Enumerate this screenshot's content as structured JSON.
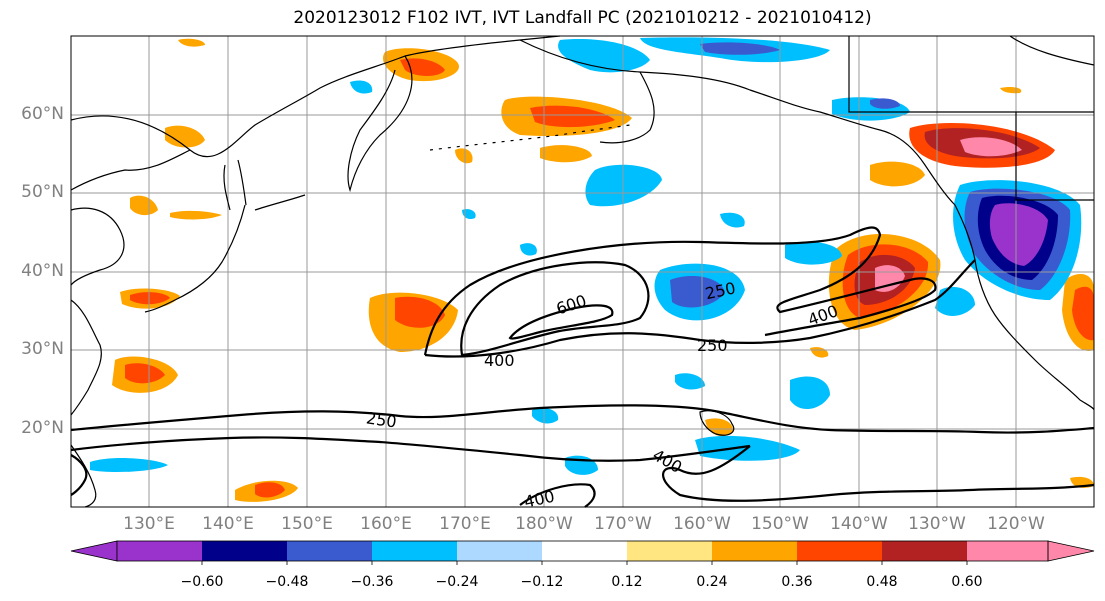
{
  "title": "2020123012 F102 IVT, IVT Landfall PC (2021010212 - 2021010412)",
  "lat_labels": [
    "60°N",
    "50°N",
    "40°N",
    "30°N",
    "20°N"
  ],
  "lon_labels": [
    "130°E",
    "140°E",
    "150°E",
    "160°E",
    "170°E",
    "180°W",
    "170°W",
    "160°W",
    "150°W",
    "140°W",
    "130°W",
    "120°W"
  ],
  "contour_labels": [
    "600",
    "400",
    "250",
    "250",
    "400",
    "250",
    "400",
    "400"
  ],
  "colorbar": {
    "ticks": [
      "−0.60",
      "−0.48",
      "−0.36",
      "−0.24",
      "−0.12",
      "0.12",
      "0.24",
      "0.36",
      "0.48",
      "0.60"
    ],
    "colors": [
      "#9933cc",
      "#00008b",
      "#3a5bd0",
      "#00bfff",
      "#add8ff",
      "#ffffff",
      "#ffe680",
      "#ffa500",
      "#ff4500",
      "#b22222",
      "#ff88aa"
    ]
  }
}
